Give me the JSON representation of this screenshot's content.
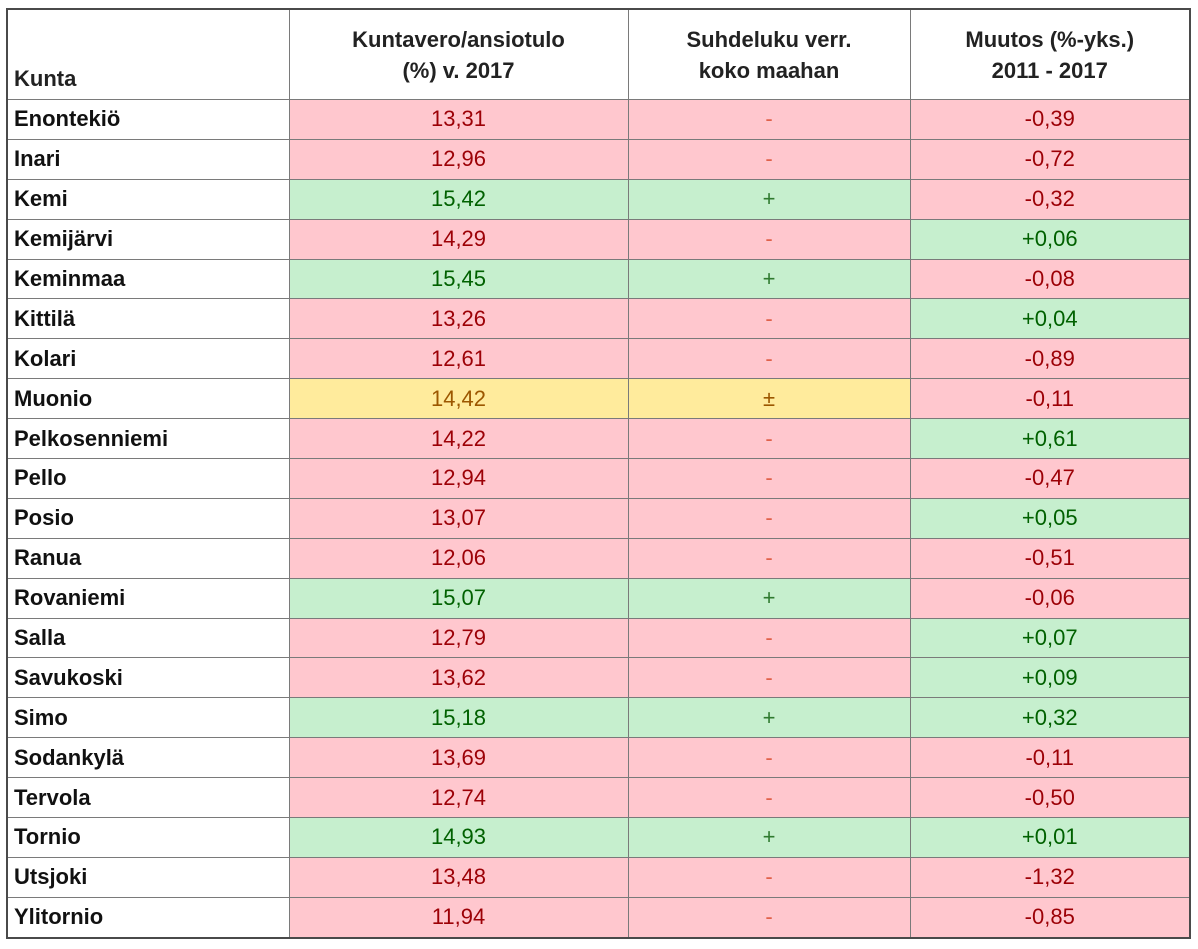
{
  "header": {
    "col_kunta": "Kunta",
    "col_tax_line1": "Kuntavero/ansiotulo",
    "col_tax_line2": "(%) v. 2017",
    "col_ratio_line1": "Suhdeluku verr.",
    "col_ratio_line2": "koko maahan",
    "col_change_line1": "Muutos (%-yks.)",
    "col_change_line2": "2011 - 2017"
  },
  "rows": [
    {
      "kunta": "Enontekiö",
      "rate": "13,31",
      "rate_status": "neg",
      "ratio": "-",
      "ratio_status": "neg",
      "change": "-0,39",
      "change_status": "neg"
    },
    {
      "kunta": "Inari",
      "rate": "12,96",
      "rate_status": "neg",
      "ratio": "-",
      "ratio_status": "neg",
      "change": "-0,72",
      "change_status": "neg"
    },
    {
      "kunta": "Kemi",
      "rate": "15,42",
      "rate_status": "pos",
      "ratio": "+",
      "ratio_status": "pos",
      "change": "-0,32",
      "change_status": "neg"
    },
    {
      "kunta": "Kemijärvi",
      "rate": "14,29",
      "rate_status": "neg",
      "ratio": "-",
      "ratio_status": "neg",
      "change": "+0,06",
      "change_status": "pos"
    },
    {
      "kunta": "Keminmaa",
      "rate": "15,45",
      "rate_status": "pos",
      "ratio": "+",
      "ratio_status": "pos",
      "change": "-0,08",
      "change_status": "neg"
    },
    {
      "kunta": "Kittilä",
      "rate": "13,26",
      "rate_status": "neg",
      "ratio": "-",
      "ratio_status": "neg",
      "change": "+0,04",
      "change_status": "pos"
    },
    {
      "kunta": "Kolari",
      "rate": "12,61",
      "rate_status": "neg",
      "ratio": "-",
      "ratio_status": "neg",
      "change": "-0,89",
      "change_status": "neg"
    },
    {
      "kunta": "Muonio",
      "rate": "14,42",
      "rate_status": "neu",
      "ratio": "±",
      "ratio_status": "neu",
      "change": "-0,11",
      "change_status": "neg"
    },
    {
      "kunta": "Pelkosenniemi",
      "rate": "14,22",
      "rate_status": "neg",
      "ratio": "-",
      "ratio_status": "neg",
      "change": "+0,61",
      "change_status": "pos"
    },
    {
      "kunta": "Pello",
      "rate": "12,94",
      "rate_status": "neg",
      "ratio": "-",
      "ratio_status": "neg",
      "change": "-0,47",
      "change_status": "neg"
    },
    {
      "kunta": "Posio",
      "rate": "13,07",
      "rate_status": "neg",
      "ratio": "-",
      "ratio_status": "neg",
      "change": "+0,05",
      "change_status": "pos"
    },
    {
      "kunta": "Ranua",
      "rate": "12,06",
      "rate_status": "neg",
      "ratio": "-",
      "ratio_status": "neg",
      "change": "-0,51",
      "change_status": "neg"
    },
    {
      "kunta": "Rovaniemi",
      "rate": "15,07",
      "rate_status": "pos",
      "ratio": "+",
      "ratio_status": "pos",
      "change": "-0,06",
      "change_status": "neg"
    },
    {
      "kunta": "Salla",
      "rate": "12,79",
      "rate_status": "neg",
      "ratio": "-",
      "ratio_status": "neg",
      "change": "+0,07",
      "change_status": "pos"
    },
    {
      "kunta": "Savukoski",
      "rate": "13,62",
      "rate_status": "neg",
      "ratio": "-",
      "ratio_status": "neg",
      "change": "+0,09",
      "change_status": "pos"
    },
    {
      "kunta": "Simo",
      "rate": "15,18",
      "rate_status": "pos",
      "ratio": "+",
      "ratio_status": "pos",
      "change": "+0,32",
      "change_status": "pos"
    },
    {
      "kunta": "Sodankylä",
      "rate": "13,69",
      "rate_status": "neg",
      "ratio": "-",
      "ratio_status": "neg",
      "change": "-0,11",
      "change_status": "neg"
    },
    {
      "kunta": "Tervola",
      "rate": "12,74",
      "rate_status": "neg",
      "ratio": "-",
      "ratio_status": "neg",
      "change": "-0,50",
      "change_status": "neg"
    },
    {
      "kunta": "Tornio",
      "rate": "14,93",
      "rate_status": "pos",
      "ratio": "+",
      "ratio_status": "pos",
      "change": "+0,01",
      "change_status": "pos"
    },
    {
      "kunta": "Utsjoki",
      "rate": "13,48",
      "rate_status": "neg",
      "ratio": "-",
      "ratio_status": "neg",
      "change": "-1,32",
      "change_status": "neg"
    },
    {
      "kunta": "Ylitornio",
      "rate": "11,94",
      "rate_status": "neg",
      "ratio": "-",
      "ratio_status": "neg",
      "change": "-0,85",
      "change_status": "neg"
    }
  ],
  "colors": {
    "neg_fill": "#ffc7ce",
    "neg_text": "#9c0006",
    "pos_fill": "#c6efce",
    "pos_text": "#006100",
    "neu_fill": "#ffeb9c",
    "neu_text": "#9c5700"
  }
}
